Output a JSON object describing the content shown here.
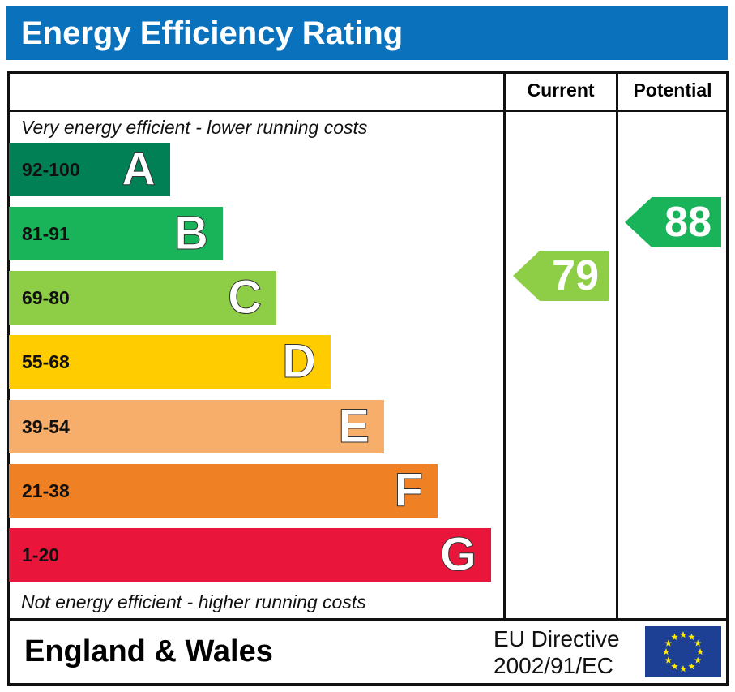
{
  "title": "Energy Efficiency Rating",
  "chart_data": {
    "type": "bar",
    "title": "Energy Efficiency Rating",
    "columns": [
      "Current",
      "Potential"
    ],
    "top_note": "Very energy efficient - lower running costs",
    "bottom_note": "Not energy efficient - higher running costs",
    "bands": [
      {
        "range": "92-100",
        "letter": "A",
        "color": "#008054"
      },
      {
        "range": "81-91",
        "letter": "B",
        "color": "#19b459"
      },
      {
        "range": "69-80",
        "letter": "C",
        "color": "#8dce46"
      },
      {
        "range": "55-68",
        "letter": "D",
        "color": "#ffcc00"
      },
      {
        "range": "39-54",
        "letter": "E",
        "color": "#f7ae6b"
      },
      {
        "range": "21-38",
        "letter": "F",
        "color": "#ef8023"
      },
      {
        "range": "1-20",
        "letter": "G",
        "color": "#e9153b"
      }
    ],
    "current": {
      "value": "79",
      "band": "C",
      "color": "#8dce46"
    },
    "potential": {
      "value": "88",
      "band": "B",
      "color": "#19b459"
    }
  },
  "footer": {
    "region": "England & Wales",
    "directive_line1": "EU Directive",
    "directive_line2": "2002/91/EC"
  }
}
